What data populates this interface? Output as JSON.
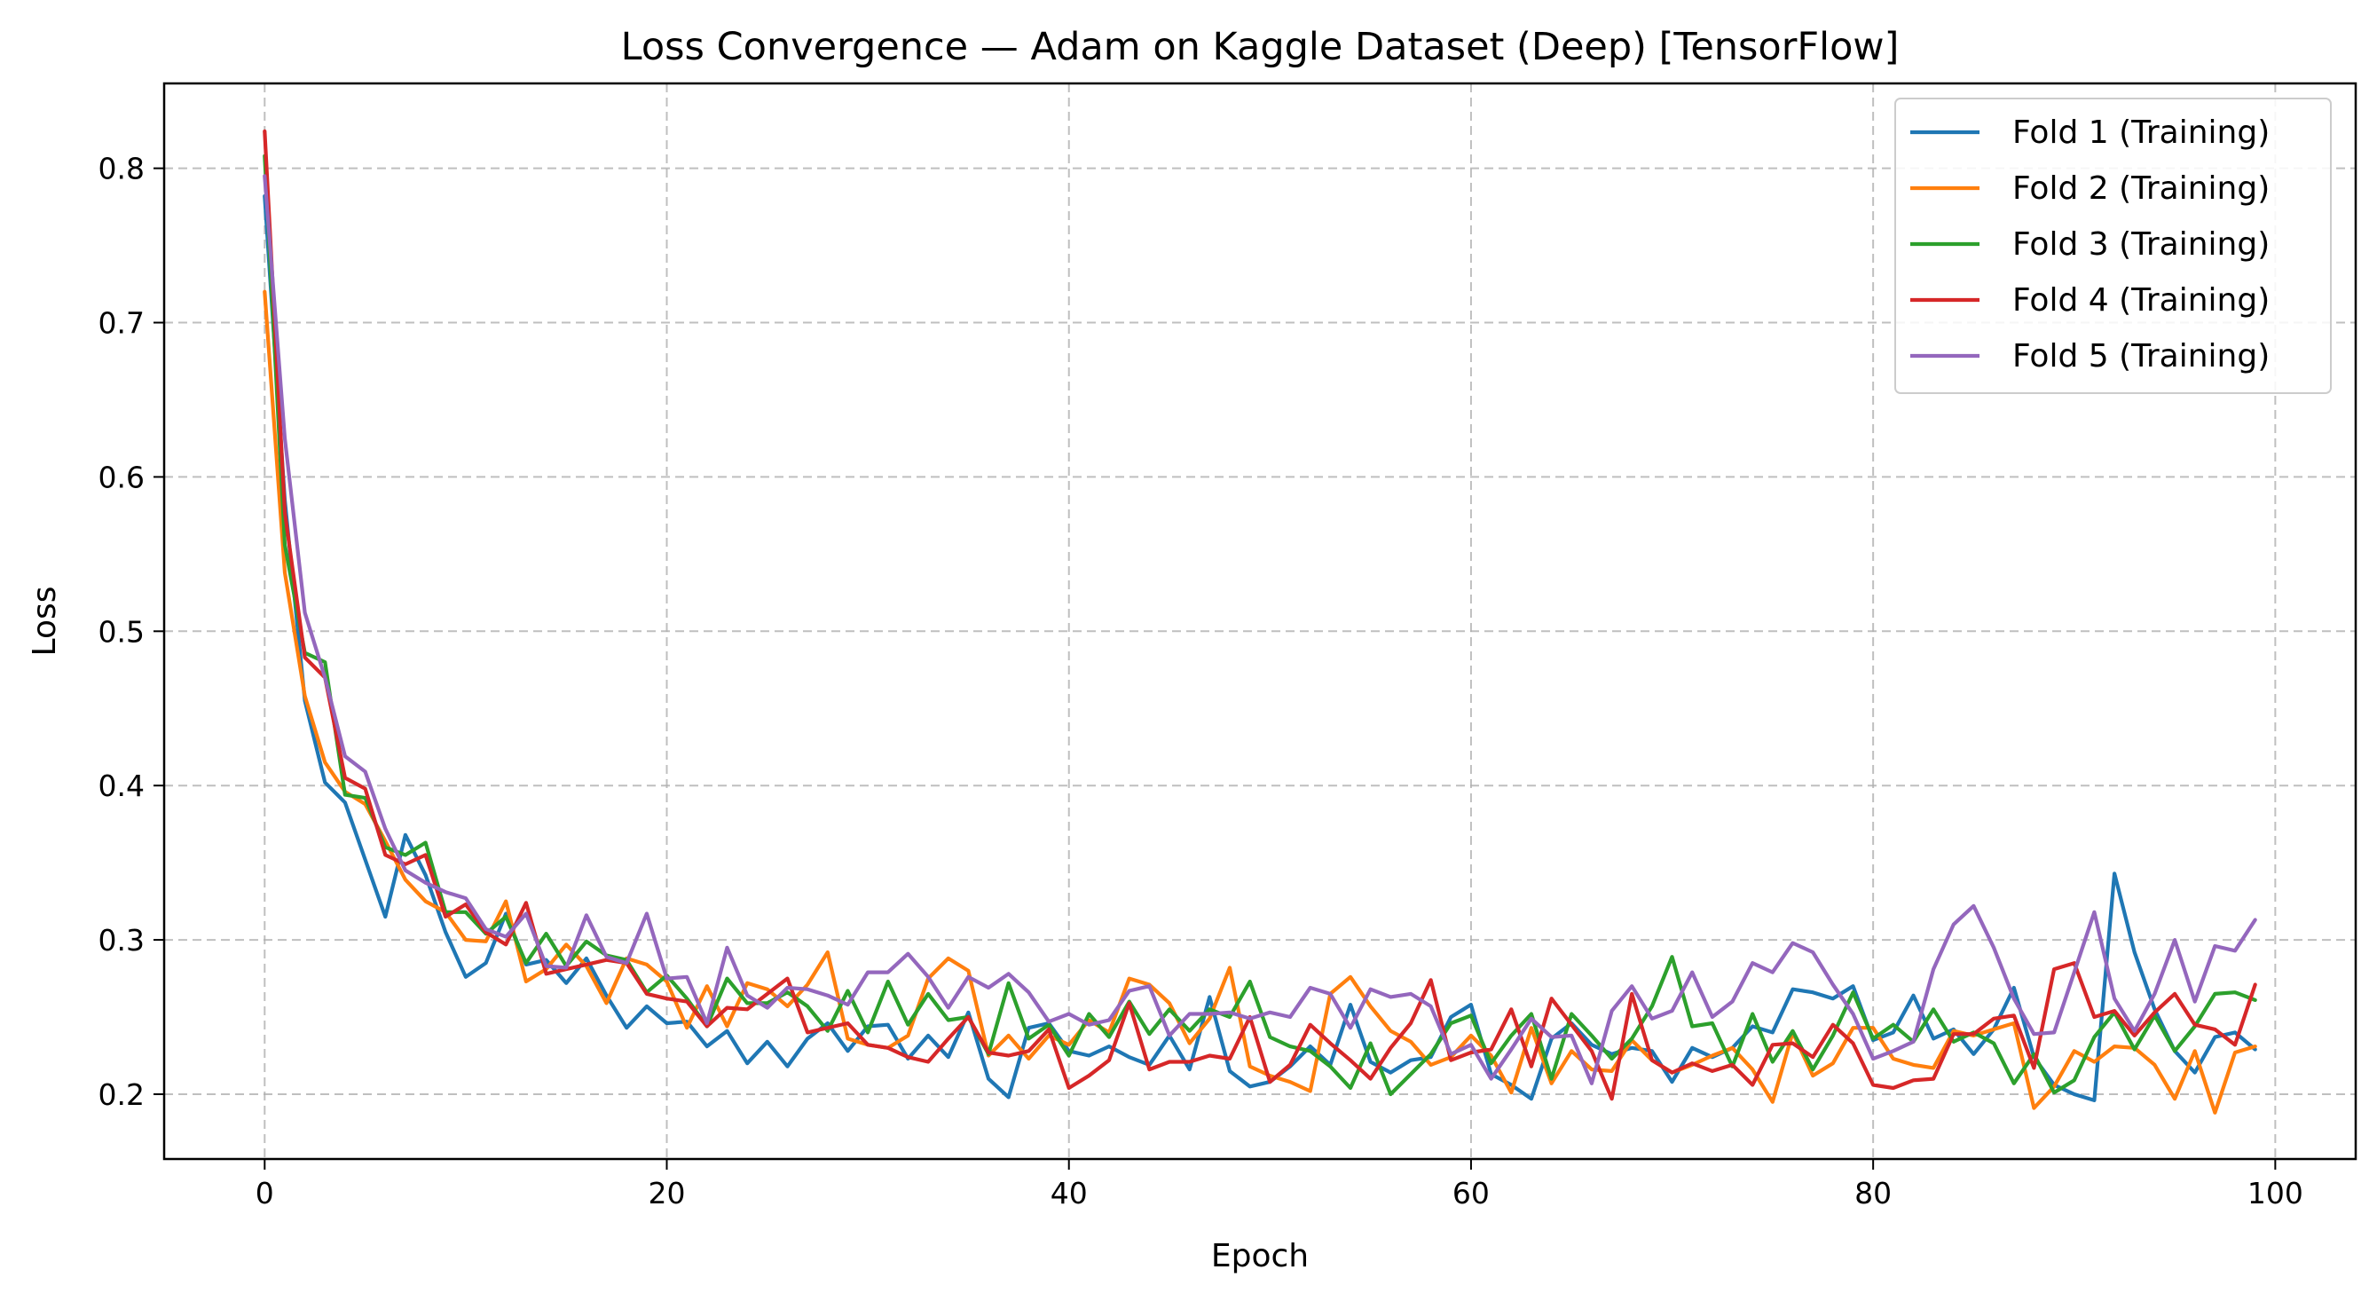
{
  "chart_data": {
    "type": "line",
    "title": "Loss Convergence — Adam on Kaggle Dataset (Deep) [TensorFlow]",
    "xlabel": "Epoch",
    "ylabel": "Loss",
    "xlim": [
      -5,
      104
    ],
    "ylim": [
      0.158,
      0.855
    ],
    "xticks": [
      0,
      20,
      40,
      60,
      80,
      100
    ],
    "yticks": [
      0.2,
      0.3,
      0.4,
      0.5,
      0.6,
      0.7,
      0.8
    ],
    "xtick_labels": [
      "0",
      "20",
      "40",
      "60",
      "80",
      "100"
    ],
    "ytick_labels": [
      "0.2",
      "0.3",
      "0.4",
      "0.5",
      "0.6",
      "0.7",
      "0.8"
    ],
    "grid": true,
    "legend_position": "top-right",
    "series": [
      {
        "name": "Fold 1 (Training)",
        "color": "#1f77b4",
        "values": [
          0.782,
          0.585,
          0.455,
          0.402,
          0.389,
          0.352,
          0.315,
          0.368,
          0.342,
          0.305,
          0.276,
          0.285,
          0.317,
          0.284,
          0.287,
          0.272,
          0.288,
          0.264,
          0.243,
          0.257,
          0.246,
          0.247,
          0.231,
          0.241,
          0.22,
          0.234,
          0.218,
          0.236,
          0.246,
          0.228,
          0.244,
          0.245,
          0.223,
          0.238,
          0.224,
          0.253,
          0.21,
          0.198,
          0.243,
          0.246,
          0.228,
          0.225,
          0.231,
          0.224,
          0.219,
          0.238,
          0.216,
          0.263,
          0.215,
          0.205,
          0.208,
          0.218,
          0.231,
          0.219,
          0.258,
          0.221,
          0.214,
          0.222,
          0.224,
          0.25,
          0.258,
          0.213,
          0.206,
          0.197,
          0.236,
          0.246,
          0.232,
          0.226,
          0.23,
          0.228,
          0.208,
          0.23,
          0.224,
          0.23,
          0.244,
          0.24,
          0.268,
          0.266,
          0.262,
          0.27,
          0.235,
          0.24,
          0.264,
          0.236,
          0.242,
          0.226,
          0.242,
          0.269,
          0.224,
          0.206,
          0.2,
          0.196,
          0.343,
          0.292,
          0.255,
          0.228,
          0.214,
          0.237,
          0.24,
          0.229
        ]
      },
      {
        "name": "Fold 2 (Training)",
        "color": "#ff7f0e",
        "values": [
          0.72,
          0.538,
          0.458,
          0.415,
          0.396,
          0.388,
          0.364,
          0.339,
          0.325,
          0.318,
          0.3,
          0.299,
          0.325,
          0.273,
          0.281,
          0.297,
          0.283,
          0.259,
          0.288,
          0.284,
          0.273,
          0.243,
          0.27,
          0.244,
          0.272,
          0.268,
          0.257,
          0.271,
          0.292,
          0.236,
          0.232,
          0.23,
          0.238,
          0.275,
          0.288,
          0.28,
          0.225,
          0.238,
          0.223,
          0.238,
          0.232,
          0.248,
          0.24,
          0.275,
          0.271,
          0.259,
          0.233,
          0.249,
          0.282,
          0.218,
          0.212,
          0.208,
          0.202,
          0.265,
          0.276,
          0.257,
          0.241,
          0.234,
          0.219,
          0.224,
          0.238,
          0.225,
          0.201,
          0.243,
          0.207,
          0.228,
          0.216,
          0.215,
          0.235,
          0.222,
          0.214,
          0.219,
          0.225,
          0.23,
          0.216,
          0.195,
          0.24,
          0.212,
          0.22,
          0.243,
          0.243,
          0.223,
          0.219,
          0.217,
          0.241,
          0.238,
          0.242,
          0.246,
          0.191,
          0.205,
          0.228,
          0.221,
          0.231,
          0.23,
          0.219,
          0.197,
          0.228,
          0.188,
          0.227,
          0.231
        ]
      },
      {
        "name": "Fold 3 (Training)",
        "color": "#2ca02c",
        "values": [
          0.808,
          0.556,
          0.486,
          0.48,
          0.394,
          0.392,
          0.36,
          0.355,
          0.363,
          0.318,
          0.318,
          0.304,
          0.315,
          0.285,
          0.304,
          0.283,
          0.299,
          0.29,
          0.287,
          0.266,
          0.277,
          0.262,
          0.244,
          0.275,
          0.259,
          0.259,
          0.266,
          0.257,
          0.241,
          0.267,
          0.24,
          0.273,
          0.245,
          0.265,
          0.248,
          0.25,
          0.226,
          0.272,
          0.236,
          0.245,
          0.225,
          0.252,
          0.237,
          0.26,
          0.239,
          0.255,
          0.241,
          0.255,
          0.25,
          0.273,
          0.237,
          0.231,
          0.228,
          0.218,
          0.204,
          0.233,
          0.2,
          0.213,
          0.226,
          0.246,
          0.251,
          0.22,
          0.238,
          0.252,
          0.21,
          0.252,
          0.238,
          0.223,
          0.236,
          0.257,
          0.289,
          0.244,
          0.246,
          0.218,
          0.252,
          0.221,
          0.241,
          0.216,
          0.238,
          0.266,
          0.236,
          0.245,
          0.234,
          0.255,
          0.234,
          0.24,
          0.233,
          0.207,
          0.226,
          0.201,
          0.209,
          0.237,
          0.253,
          0.229,
          0.251,
          0.228,
          0.244,
          0.265,
          0.266,
          0.261
        ]
      },
      {
        "name": "Fold 4 (Training)",
        "color": "#d62728",
        "values": [
          0.824,
          0.577,
          0.483,
          0.47,
          0.405,
          0.398,
          0.355,
          0.349,
          0.355,
          0.315,
          0.323,
          0.305,
          0.297,
          0.324,
          0.278,
          0.281,
          0.284,
          0.287,
          0.285,
          0.265,
          0.262,
          0.26,
          0.244,
          0.256,
          0.255,
          0.265,
          0.275,
          0.24,
          0.243,
          0.246,
          0.232,
          0.23,
          0.224,
          0.221,
          0.236,
          0.25,
          0.227,
          0.225,
          0.228,
          0.242,
          0.204,
          0.212,
          0.222,
          0.259,
          0.216,
          0.221,
          0.221,
          0.225,
          0.223,
          0.25,
          0.208,
          0.219,
          0.245,
          0.233,
          0.222,
          0.21,
          0.23,
          0.246,
          0.274,
          0.222,
          0.227,
          0.229,
          0.255,
          0.218,
          0.262,
          0.245,
          0.228,
          0.197,
          0.265,
          0.222,
          0.214,
          0.22,
          0.215,
          0.219,
          0.206,
          0.232,
          0.233,
          0.224,
          0.245,
          0.233,
          0.206,
          0.204,
          0.209,
          0.21,
          0.239,
          0.239,
          0.249,
          0.251,
          0.217,
          0.281,
          0.285,
          0.25,
          0.254,
          0.238,
          0.253,
          0.265,
          0.245,
          0.242,
          0.232,
          0.271
        ]
      },
      {
        "name": "Fold 5 (Training)",
        "color": "#9467bd",
        "values": [
          0.795,
          0.625,
          0.512,
          0.47,
          0.419,
          0.409,
          0.372,
          0.345,
          0.337,
          0.331,
          0.327,
          0.307,
          0.302,
          0.317,
          0.283,
          0.282,
          0.316,
          0.289,
          0.285,
          0.317,
          0.275,
          0.276,
          0.246,
          0.295,
          0.264,
          0.256,
          0.269,
          0.268,
          0.264,
          0.258,
          0.279,
          0.279,
          0.291,
          0.276,
          0.256,
          0.276,
          0.269,
          0.278,
          0.266,
          0.247,
          0.252,
          0.245,
          0.248,
          0.267,
          0.27,
          0.238,
          0.252,
          0.252,
          0.253,
          0.249,
          0.253,
          0.25,
          0.269,
          0.265,
          0.243,
          0.268,
          0.263,
          0.265,
          0.257,
          0.226,
          0.232,
          0.21,
          0.229,
          0.249,
          0.237,
          0.238,
          0.207,
          0.254,
          0.27,
          0.249,
          0.254,
          0.279,
          0.25,
          0.26,
          0.285,
          0.279,
          0.298,
          0.292,
          0.271,
          0.252,
          0.223,
          0.228,
          0.234,
          0.281,
          0.31,
          0.322,
          0.295,
          0.262,
          0.239,
          0.24,
          0.279,
          0.318,
          0.262,
          0.241,
          0.265,
          0.3,
          0.26,
          0.296,
          0.293,
          0.313
        ]
      }
    ]
  }
}
